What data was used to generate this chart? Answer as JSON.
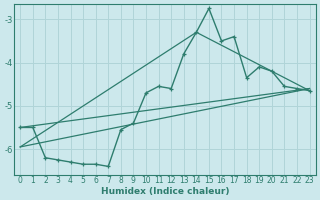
{
  "xlabel": "Humidex (Indice chaleur)",
  "background_color": "#cce8ec",
  "grid_color": "#b0d4d8",
  "line_color": "#2e7d6e",
  "xlim": [
    -0.5,
    23.5
  ],
  "ylim": [
    -6.6,
    -2.65
  ],
  "yticks": [
    -6,
    -5,
    -4,
    -3
  ],
  "xticks": [
    0,
    1,
    2,
    3,
    4,
    5,
    6,
    7,
    8,
    9,
    10,
    11,
    12,
    13,
    14,
    15,
    16,
    17,
    18,
    19,
    20,
    21,
    22,
    23
  ],
  "line1_x": [
    0,
    1,
    2,
    3,
    4,
    5,
    6,
    7,
    8,
    9,
    10,
    11,
    12,
    13,
    14,
    15,
    16,
    17,
    18,
    19,
    20,
    21,
    22,
    23
  ],
  "line1_y": [
    -5.5,
    -5.5,
    -6.2,
    -6.25,
    -6.3,
    -6.35,
    -6.35,
    -6.4,
    -5.55,
    -5.4,
    -4.7,
    -4.55,
    -4.6,
    -3.8,
    -3.3,
    -2.75,
    -3.5,
    -3.4,
    -4.35,
    -4.1,
    -4.2,
    -4.55,
    -4.6,
    -4.65
  ],
  "line2_x": [
    0,
    23
  ],
  "line2_y": [
    -5.5,
    -4.6
  ],
  "line3_x": [
    0,
    23
  ],
  "line3_y": [
    -5.95,
    -4.6
  ],
  "line4_x": [
    0,
    14,
    23
  ],
  "line4_y": [
    -5.95,
    -3.3,
    -4.65
  ]
}
